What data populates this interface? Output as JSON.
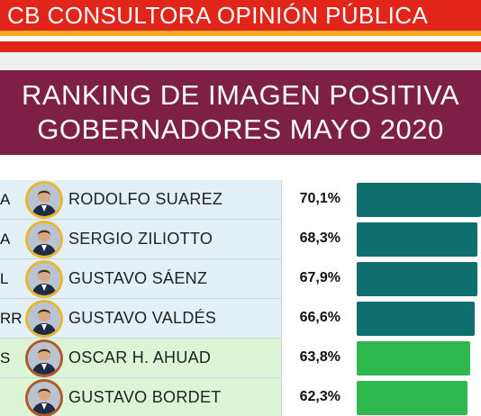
{
  "header": {
    "brand": "CB CONSULTORA OPINIÓN PÚBLICA",
    "title_line1": "RANKING DE IMAGEN POSITIVA",
    "title_line2": "GOBERNADORES MAYO 2020"
  },
  "colors": {
    "brand_red": "#e1251b",
    "stripe_orange": "#f5a623",
    "title_bg": "#7e1f46",
    "bar_teal": "#0f6e6e",
    "bar_green": "#2eb84e"
  },
  "chart_data": {
    "type": "bar",
    "title": "RANKING DE IMAGEN POSITIVA GOBERNADORES MAYO 2020",
    "xlabel": "",
    "ylabel": "",
    "unit": "%",
    "categories": [
      "RODOLFO SUAREZ",
      "SERGIO ZILIOTTO",
      "GUSTAVO SÁENZ",
      "GUSTAVO VALDÉS",
      "OSCAR H. AHUAD",
      "GUSTAVO BORDET"
    ],
    "values": [
      70.1,
      68.3,
      67.9,
      66.6,
      63.8,
      62.3
    ],
    "grid": false,
    "legend": "none"
  },
  "rows": [
    {
      "province": "A",
      "name": "RODOLFO SUAREZ",
      "pct": "70,1%",
      "color": "teal",
      "avatar_icon": "person-portrait-icon"
    },
    {
      "province": "A",
      "name": "SERGIO ZILIOTTO",
      "pct": "68,3%",
      "color": "teal",
      "avatar_icon": "person-portrait-icon"
    },
    {
      "province": "L",
      "name": "GUSTAVO SÁENZ",
      "pct": "67,9%",
      "color": "teal",
      "avatar_icon": "person-portrait-icon"
    },
    {
      "province": "RR",
      "name": "GUSTAVO VALDÉS",
      "pct": "66,6%",
      "color": "teal",
      "avatar_icon": "person-portrait-icon"
    },
    {
      "province": "S",
      "name": "OSCAR H. AHUAD",
      "pct": "63,8%",
      "color": "green",
      "avatar_icon": "person-portrait-icon"
    },
    {
      "province": "",
      "name": "GUSTAVO BORDET",
      "pct": "62,3%",
      "color": "green",
      "avatar_icon": "person-portrait-icon"
    }
  ]
}
